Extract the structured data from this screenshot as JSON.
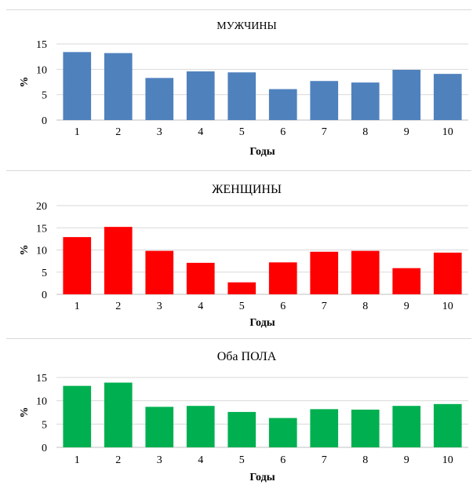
{
  "chart_data": [
    {
      "type": "bar",
      "title": "МУЖЧИНЫ",
      "categories": [
        "1",
        "2",
        "3",
        "4",
        "5",
        "6",
        "7",
        "8",
        "9",
        "10"
      ],
      "values": [
        13.4,
        13.2,
        8.3,
        9.6,
        9.4,
        6.1,
        7.7,
        7.4,
        9.9,
        9.1
      ],
      "xlabel": "Годы",
      "ylabel": "%",
      "ylim": [
        0,
        15
      ],
      "yticks": [
        "0",
        "5",
        "10",
        "15"
      ],
      "color": "#4f81bd",
      "grid": true
    },
    {
      "type": "bar",
      "title": "ЖЕНЩИНЫ",
      "categories": [
        "1",
        "2",
        "3",
        "4",
        "5",
        "6",
        "7",
        "8",
        "9",
        "10"
      ],
      "values": [
        12.9,
        15.2,
        9.8,
        7.1,
        2.7,
        7.2,
        9.6,
        9.8,
        5.9,
        9.4
      ],
      "xlabel": "Годы",
      "ylabel": "%",
      "ylim": [
        0,
        20
      ],
      "yticks": [
        "0",
        "5",
        "10",
        "15",
        "20"
      ],
      "color": "#ff0000",
      "grid": true
    },
    {
      "type": "bar",
      "title": "Оба ПОЛА",
      "categories": [
        "1",
        "2",
        "3",
        "4",
        "5",
        "6",
        "7",
        "8",
        "9",
        "10"
      ],
      "values": [
        13.2,
        13.9,
        8.7,
        8.9,
        7.6,
        6.3,
        8.2,
        8.1,
        8.9,
        9.3
      ],
      "xlabel": "Годы",
      "ylabel": "%",
      "ylim": [
        0,
        15
      ],
      "yticks": [
        "0",
        "5",
        "10",
        "15"
      ],
      "color": "#00b050",
      "grid": true
    }
  ]
}
